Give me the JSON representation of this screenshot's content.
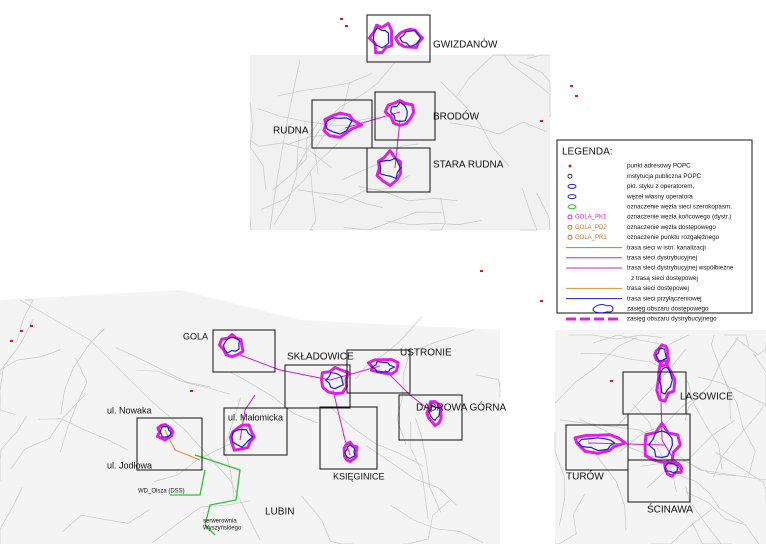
{
  "labels": [
    "GWIZDANÓW",
    "RUDNA",
    "BRODÓW",
    "STARA RUDNA",
    "GOLA",
    "SKŁADOWICE",
    "USTRONIE",
    "DĄBROWA GÓRNA",
    "ul. Nowaka",
    "ul. Małomicka",
    "ul. Jodłowa",
    "KSIĘGINICE",
    "WD_Olsza (DSS)",
    "LUBIN",
    "serwerownia",
    "Wyszyńskiego",
    "LASOWICE",
    "TURÓW",
    "ŚCINAWA"
  ],
  "legend": {
    "title": "LEGENDA:",
    "items": [
      {
        "text": [
          "punkt adresowy POPC"
        ]
      },
      {
        "text": [
          "instytucja publiczna POPC"
        ]
      },
      {
        "text": [
          "pkt. styku z operatorem,"
        ]
      },
      {
        "text": [
          "węzeł własny operatora"
        ]
      },
      {
        "text": [
          "oznaczenie węzła sieci szerokopasm."
        ]
      },
      {
        "symbol": "GOLA_PK1",
        "text": [
          "oznaczenie węzła końcowego (dystr.)"
        ]
      },
      {
        "symbol": "GOLA_PD2",
        "text": [
          "oznaczenie węzła dostępowego"
        ]
      },
      {
        "symbol": "GOLA_PR1",
        "text": [
          "oznaczenie punktu rozgałęźnego"
        ]
      },
      {
        "text": [
          "trasa sieci w istn. kanalizacji"
        ]
      },
      {
        "text": [
          "trasa sieci dystrybucyjnej"
        ]
      },
      {
        "text": [
          "trasa sieci dystrybucyjnej współbieżne",
          "z trasą sieci dostępowej"
        ]
      },
      {
        "text": [
          "trasa sieci dostępowej"
        ]
      },
      {
        "text": [
          "trasa sieci przyłączeniowej"
        ]
      },
      {
        "text": [
          "zasięg obszaru dostępowego"
        ]
      },
      {
        "text": [
          "zasięg obszaru dystrybucyjnego"
        ]
      }
    ]
  }
}
